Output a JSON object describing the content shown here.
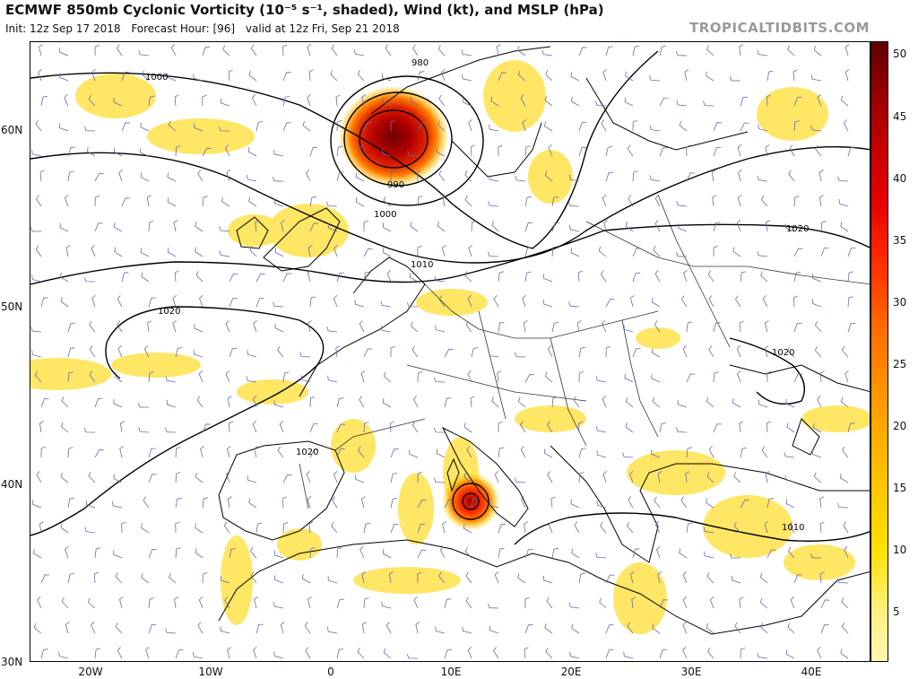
{
  "header": {
    "title": "ECMWF 850mb Cyclonic Vorticity (10⁻⁵ s⁻¹, shaded), Wind (kt), and MSLP (hPa)",
    "init": "Init: 12z Sep 17 2018",
    "forecast_hour": "Forecast Hour: [96]",
    "valid": "valid at 12z Fri, Sep 21 2018",
    "brand": "TROPICALTIDBITS.COM"
  },
  "map": {
    "lat_labels": [
      "60N",
      "50N",
      "40N",
      "30N"
    ],
    "lon_labels": [
      "20W",
      "10W",
      "0",
      "10E",
      "20E",
      "30E",
      "40E"
    ],
    "isobar_labels": [
      "980",
      "990",
      "1000",
      "1000",
      "1010",
      "1020",
      "1020",
      "1020",
      "1020",
      "1010"
    ]
  },
  "colorbar": {
    "labels": [
      "50",
      "45",
      "40",
      "35",
      "30",
      "25",
      "20",
      "15",
      "10",
      "5"
    ],
    "colors": [
      "#fff7b0",
      "#ffe000",
      "#ff9a00",
      "#ff3000",
      "#c00000",
      "#600000"
    ]
  }
}
